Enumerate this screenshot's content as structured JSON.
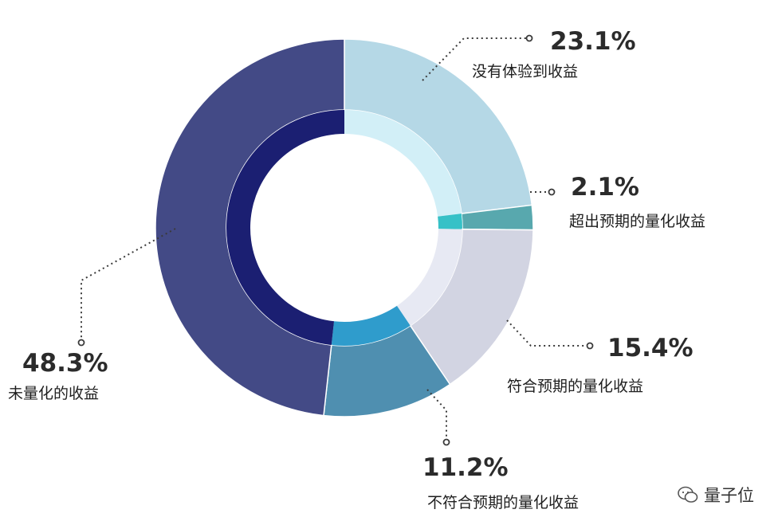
{
  "chart_data": {
    "type": "pie",
    "segments": [
      {
        "value": 23.1,
        "pct_label": "23.1%",
        "label": "没有体验到收益",
        "outer": "#b5d8e6",
        "inner": "#d2eff7"
      },
      {
        "value": 2.1,
        "pct_label": "2.1%",
        "label": "超出预期的量化收益",
        "outer": "#58a8ae",
        "inner": "#36c1c7"
      },
      {
        "value": 15.4,
        "pct_label": "15.4%",
        "label": "符合预期的量化收益",
        "outer": "#d2d4e2",
        "inner": "#e7e9f3"
      },
      {
        "value": 11.2,
        "pct_label": "11.2%",
        "label": "不符合预期的量化收益",
        "outer": "#4f8fb0",
        "inner": "#2f9ccc"
      },
      {
        "value": 48.3,
        "pct_label": "48.3%",
        "label": "未量化的收益",
        "outer": "#434a86",
        "inner": "#1b1f72"
      }
    ],
    "start": "top",
    "direction": "clockwise"
  },
  "watermark": {
    "text": "量子位",
    "icon": "wechat-icon"
  }
}
